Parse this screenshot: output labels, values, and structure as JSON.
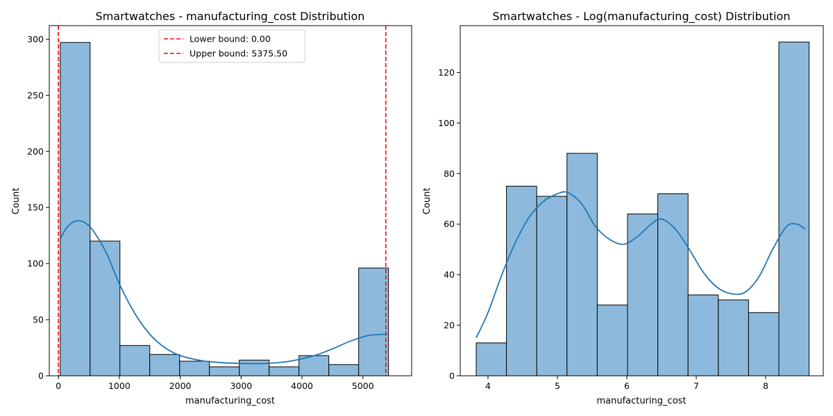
{
  "chart_data": [
    {
      "type": "bar",
      "title": "Smartwatches - manufacturing_cost Distribution",
      "xlabel": "manufacturing_cost",
      "ylabel": "Count",
      "xlim": [
        -150,
        5800
      ],
      "ylim": [
        0,
        312
      ],
      "xticks": [
        0,
        1000,
        2000,
        3000,
        4000,
        5000
      ],
      "yticks": [
        0,
        50,
        100,
        150,
        200,
        250,
        300
      ],
      "bin_edges": [
        30,
        520,
        1010,
        1500,
        1990,
        2480,
        2970,
        3460,
        3950,
        4440,
        4930,
        5420
      ],
      "values": [
        297,
        120,
        27,
        19,
        13,
        8,
        14,
        8,
        18,
        10,
        96
      ],
      "bar_color": "#8dbadc",
      "edge_color": "#000000",
      "kde": {
        "color": "#1f77b4",
        "x": [
          30,
          150,
          300,
          450,
          600,
          800,
          1000,
          1250,
          1500,
          1750,
          2000,
          2300,
          2600,
          3000,
          3400,
          3800,
          4200,
          4500,
          4800,
          5100,
          5400
        ],
        "y": [
          122,
          133,
          138,
          136,
          127,
          108,
          82,
          56,
          37,
          25,
          18,
          14,
          12,
          11,
          11,
          13,
          18,
          24,
          31,
          36,
          37
        ]
      },
      "reference_lines": [
        {
          "label": "Lower bound: 0.00",
          "value": 0,
          "color": "#ff0000",
          "style": "dashed"
        },
        {
          "label": "Upper bound: 5375.50",
          "value": 5375.5,
          "color": "#ff0000",
          "style": "dashed"
        }
      ],
      "legend_position": "top-center",
      "grid": false
    },
    {
      "type": "bar",
      "title": "Smartwatches - Log(manufacturing_cost) Distribution",
      "xlabel": "manufacturing_cost",
      "ylabel": "Count",
      "xlim": [
        3.6,
        8.83
      ],
      "ylim": [
        0,
        138.5
      ],
      "xticks": [
        4,
        5,
        6,
        7,
        8
      ],
      "yticks": [
        0,
        20,
        40,
        60,
        80,
        100,
        120
      ],
      "bin_edges": [
        3.83,
        4.266,
        4.702,
        5.138,
        5.574,
        6.01,
        6.446,
        6.882,
        7.318,
        7.754,
        8.19,
        8.626
      ],
      "values": [
        13,
        75,
        71,
        88,
        28,
        64,
        72,
        32,
        30,
        25,
        132
      ],
      "bar_color": "#8dbadc",
      "edge_color": "#000000",
      "kde": {
        "color": "#1f77b4",
        "x": [
          3.83,
          4.0,
          4.2,
          4.4,
          4.6,
          4.8,
          5.0,
          5.15,
          5.35,
          5.55,
          5.75,
          5.95,
          6.15,
          6.35,
          6.5,
          6.7,
          6.9,
          7.1,
          7.3,
          7.5,
          7.7,
          7.9,
          8.1,
          8.3,
          8.45,
          8.57
        ],
        "y": [
          15,
          25,
          40,
          53,
          63,
          69,
          72,
          72.5,
          68,
          59,
          54,
          52,
          55,
          60,
          62,
          58,
          50,
          41,
          35,
          32.5,
          33,
          39,
          50,
          59,
          60,
          58
        ]
      },
      "grid": false
    }
  ]
}
